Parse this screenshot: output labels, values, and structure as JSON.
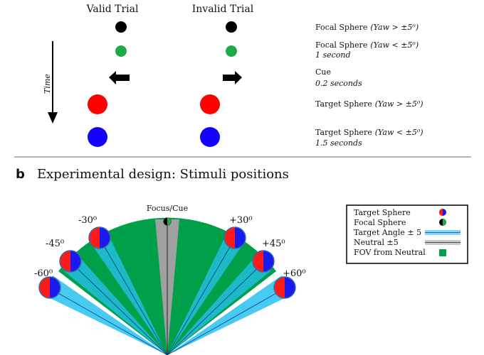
{
  "panel_a": {
    "valid_label": "Valid Trial",
    "invalid_label": "Invalid Trial",
    "time_label": "Time",
    "steps": [
      {
        "label": "Focal Sphere",
        "cond": "(Yaw > ±5⁰)",
        "duration": ""
      },
      {
        "label": "Focal Sphere",
        "cond": "(Yaw < ±5⁰)",
        "duration": "1 second"
      },
      {
        "label": "Cue",
        "cond": "",
        "duration": "0.2 seconds"
      },
      {
        "label": "Target Sphere",
        "cond": "(Yaw > ±5⁰)",
        "duration": ""
      },
      {
        "label": "Target Sphere",
        "cond": "(Yaw < ±5⁰)",
        "duration": "1.5 seconds"
      }
    ],
    "colors": {
      "focal_far": "#000000",
      "focal_near": "#1faa4a",
      "target_far": "#ff0000",
      "target_near": "#1400ff"
    }
  },
  "panel_b": {
    "letter": "b",
    "title": "Experimental design: Stimuli positions",
    "focus_label": "Focus/Cue",
    "angle_labels": {
      "m60": "-60⁰",
      "m45": "-45⁰",
      "m30": "-30⁰",
      "p30": "+30⁰",
      "p45": "+45⁰",
      "p60": "+60⁰"
    },
    "legend": {
      "target_sphere": "Target Sphere",
      "focal_sphere": "Focal Sphere",
      "target_angle": "Target Angle ± 5",
      "neutral": "Neutral ±5",
      "fov": "FOV from Neutral"
    },
    "colors": {
      "fov": "#00a04a",
      "target_band": "#28c2f0",
      "neutral_band": "#a0a0a0",
      "sphere_red": "#ff1a1a",
      "sphere_blue": "#1a1aee"
    }
  }
}
